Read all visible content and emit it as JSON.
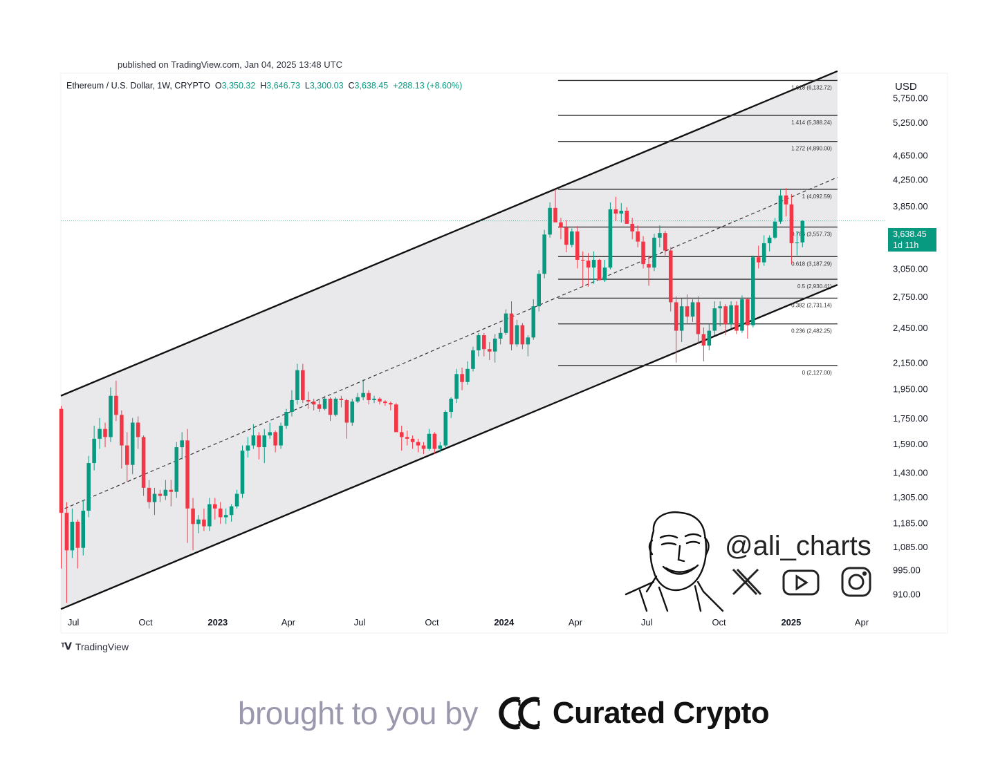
{
  "published_text": "published on TradingView.com, Jan 04, 2025 13:48 UTC",
  "header": {
    "symbol": "Ethereum / U.S. Dollar, 1W, CRYPTO",
    "open_label": "O",
    "open": "3,350.32",
    "high_label": "H",
    "high": "3,646.73",
    "low_label": "L",
    "low": "3,300.03",
    "close_label": "C",
    "close": "3,638.45",
    "change": "+288.13 (+8.60%)"
  },
  "currency": "USD",
  "price_badge": {
    "price": "3,638.45",
    "countdown": "1d 11h"
  },
  "brand": {
    "tradingview": "TradingView",
    "handle": "@ali_charts"
  },
  "footer": {
    "prefix": "brought to you by",
    "brand": "Curated Crypto"
  },
  "colors": {
    "up": "#089981",
    "down": "#f23645",
    "channel_fill": "#e9e9ec",
    "badge": "#089981"
  },
  "chart_data": {
    "type": "candlestick",
    "y_scale": "log",
    "ylim": [
      850,
      6300
    ],
    "y_ticks": [
      5750,
      5250,
      4650,
      4250,
      3850,
      3050,
      2750,
      2450,
      2150,
      1950,
      1750,
      1590,
      1430,
      1305,
      1185,
      1085,
      995,
      910
    ],
    "y_tick_labels": [
      "5,750.00",
      "5,250.00",
      "4,650.00",
      "4,250.00",
      "3,850.00",
      "3,050.00",
      "2,750.00",
      "2,450.00",
      "2,150.00",
      "1,950.00",
      "1,750.00",
      "1,590.00",
      "1,430.00",
      "1,305.00",
      "1,185.00",
      "1,085.00",
      "995.00",
      "910.00"
    ],
    "x_ticks": [
      {
        "date": "2022-07-01",
        "label": "Jul",
        "bold": false
      },
      {
        "date": "2022-10-01",
        "label": "Oct",
        "bold": false
      },
      {
        "date": "2023-01-01",
        "label": "2023",
        "bold": true
      },
      {
        "date": "2023-04-01",
        "label": "Apr",
        "bold": false
      },
      {
        "date": "2023-07-01",
        "label": "Jul",
        "bold": false
      },
      {
        "date": "2023-10-01",
        "label": "Oct",
        "bold": false
      },
      {
        "date": "2024-01-01",
        "label": "2024",
        "bold": true
      },
      {
        "date": "2024-04-01",
        "label": "Apr",
        "bold": false
      },
      {
        "date": "2024-07-01",
        "label": "Jul",
        "bold": false
      },
      {
        "date": "2024-10-01",
        "label": "Oct",
        "bold": false
      },
      {
        "date": "2025-01-01",
        "label": "2025",
        "bold": true
      },
      {
        "date": "2025-04-01",
        "label": "Apr",
        "bold": false
      }
    ],
    "xlim": [
      "2022-06-15",
      "2025-05-01"
    ],
    "channel": {
      "upper": [
        {
          "date": "2022-06-15",
          "price": 1900
        },
        {
          "date": "2025-03-01",
          "price": 6350
        }
      ],
      "lower": [
        {
          "date": "2022-06-15",
          "price": 860
        },
        {
          "date": "2025-03-01",
          "price": 2870
        }
      ],
      "mid_dashed": [
        {
          "date": "2022-06-20",
          "price": 1250
        },
        {
          "date": "2025-03-01",
          "price": 4280
        }
      ]
    },
    "fib": {
      "start_date": "2024-03-10",
      "end_date": "2025-03-01",
      "levels": [
        {
          "ratio": "1.618",
          "price": 6132.72,
          "label": "1.618 (6,132.72)"
        },
        {
          "ratio": "1.414",
          "price": 5388.24,
          "label": "1.414 (5,388.24)"
        },
        {
          "ratio": "1.272",
          "price": 4890.0,
          "label": "1.272 (4,890.00)"
        },
        {
          "ratio": "1",
          "price": 4092.59,
          "label": "1 (4,092.59)"
        },
        {
          "ratio": "0.786",
          "price": 3557.73,
          "label": "0.786 (3,557.73)"
        },
        {
          "ratio": "0.618",
          "price": 3187.29,
          "label": "0.618 (3,187.29)"
        },
        {
          "ratio": "0.5",
          "price": 2930.41,
          "label": "0.5 (2,930.41)"
        },
        {
          "ratio": "0.382",
          "price": 2731.14,
          "label": "0.382 (2,731.14)"
        },
        {
          "ratio": "0.236",
          "price": 2482.25,
          "label": "0.236 (2,482.25)"
        },
        {
          "ratio": "0",
          "price": 2127.0,
          "label": "0 (2,127.00)"
        }
      ]
    },
    "current_price": 3638.45,
    "candles_start": "2022-06-13",
    "candles_step_days": 7,
    "candles_ohlc": [
      [
        1810,
        1830,
        1000,
        1230
      ],
      [
        1230,
        1280,
        880,
        1070
      ],
      [
        1070,
        1250,
        1040,
        1190
      ],
      [
        1190,
        1200,
        1000,
        1080
      ],
      [
        1080,
        1290,
        1050,
        1240
      ],
      [
        1240,
        1520,
        1210,
        1480
      ],
      [
        1480,
        1700,
        1440,
        1620
      ],
      [
        1620,
        1750,
        1560,
        1680
      ],
      [
        1680,
        1720,
        1570,
        1630
      ],
      [
        1630,
        1960,
        1600,
        1900
      ],
      [
        1900,
        2010,
        1730,
        1770
      ],
      [
        1770,
        1800,
        1450,
        1580
      ],
      [
        1580,
        1660,
        1380,
        1470
      ],
      [
        1470,
        1750,
        1420,
        1720
      ],
      [
        1720,
        1760,
        1560,
        1630
      ],
      [
        1630,
        1640,
        1310,
        1350
      ],
      [
        1350,
        1390,
        1250,
        1280
      ],
      [
        1280,
        1350,
        1220,
        1320
      ],
      [
        1320,
        1340,
        1280,
        1310
      ],
      [
        1310,
        1390,
        1290,
        1340
      ],
      [
        1340,
        1390,
        1260,
        1330
      ],
      [
        1330,
        1600,
        1300,
        1570
      ],
      [
        1570,
        1660,
        1500,
        1610
      ],
      [
        1610,
        1680,
        1100,
        1250
      ],
      [
        1250,
        1300,
        1070,
        1180
      ],
      [
        1180,
        1220,
        1140,
        1200
      ],
      [
        1200,
        1250,
        1150,
        1170
      ],
      [
        1170,
        1300,
        1150,
        1270
      ],
      [
        1270,
        1300,
        1200,
        1250
      ],
      [
        1250,
        1280,
        1180,
        1210
      ],
      [
        1210,
        1250,
        1180,
        1220
      ],
      [
        1220,
        1270,
        1190,
        1260
      ],
      [
        1260,
        1340,
        1250,
        1320
      ],
      [
        1320,
        1580,
        1300,
        1550
      ],
      [
        1550,
        1630,
        1510,
        1580
      ],
      [
        1580,
        1710,
        1560,
        1640
      ],
      [
        1640,
        1660,
        1500,
        1570
      ],
      [
        1570,
        1680,
        1480,
        1640
      ],
      [
        1640,
        1720,
        1620,
        1660
      ],
      [
        1660,
        1670,
        1540,
        1580
      ],
      [
        1580,
        1720,
        1560,
        1700
      ],
      [
        1700,
        1810,
        1680,
        1790
      ],
      [
        1790,
        1940,
        1760,
        1870
      ],
      [
        1870,
        2140,
        1840,
        2090
      ],
      [
        2090,
        2140,
        1850,
        1870
      ],
      [
        1870,
        1930,
        1810,
        1860
      ],
      [
        1860,
        1880,
        1800,
        1840
      ],
      [
        1840,
        1870,
        1790,
        1810
      ],
      [
        1810,
        1900,
        1800,
        1880
      ],
      [
        1880,
        1890,
        1730,
        1770
      ],
      [
        1770,
        1890,
        1760,
        1880
      ],
      [
        1880,
        1900,
        1820,
        1870
      ],
      [
        1870,
        1880,
        1620,
        1720
      ],
      [
        1720,
        1880,
        1700,
        1860
      ],
      [
        1860,
        1920,
        1850,
        1890
      ],
      [
        1890,
        2020,
        1870,
        1920
      ],
      [
        1920,
        1940,
        1840,
        1870
      ],
      [
        1870,
        1900,
        1850,
        1880
      ],
      [
        1880,
        1890,
        1840,
        1860
      ],
      [
        1860,
        1870,
        1830,
        1850
      ],
      [
        1850,
        1860,
        1800,
        1840
      ],
      [
        1840,
        1850,
        1720,
        1660
      ],
      [
        1660,
        1700,
        1550,
        1630
      ],
      [
        1630,
        1670,
        1580,
        1620
      ],
      [
        1620,
        1640,
        1560,
        1600
      ],
      [
        1600,
        1620,
        1540,
        1580
      ],
      [
        1580,
        1600,
        1530,
        1560
      ],
      [
        1560,
        1680,
        1550,
        1650
      ],
      [
        1650,
        1660,
        1530,
        1560
      ],
      [
        1560,
        1600,
        1540,
        1580
      ],
      [
        1580,
        1800,
        1570,
        1790
      ],
      [
        1790,
        1890,
        1750,
        1880
      ],
      [
        1880,
        2100,
        1850,
        2060
      ],
      [
        2060,
        2110,
        1940,
        2000
      ],
      [
        2000,
        2160,
        1980,
        2100
      ],
      [
        2100,
        2280,
        2080,
        2250
      ],
      [
        2250,
        2400,
        2200,
        2380
      ],
      [
        2380,
        2400,
        2200,
        2260
      ],
      [
        2260,
        2320,
        2170,
        2240
      ],
      [
        2240,
        2390,
        2150,
        2350
      ],
      [
        2350,
        2450,
        2300,
        2400
      ],
      [
        2400,
        2620,
        2380,
        2580
      ],
      [
        2580,
        2700,
        2250,
        2300
      ],
      [
        2300,
        2520,
        2280,
        2470
      ],
      [
        2470,
        2490,
        2260,
        2300
      ],
      [
        2300,
        2380,
        2200,
        2360
      ],
      [
        2360,
        2720,
        2340,
        2650
      ],
      [
        2650,
        3030,
        2600,
        2990
      ],
      [
        2990,
        3520,
        2940,
        3460
      ],
      [
        3460,
        3900,
        3420,
        3820
      ],
      [
        3820,
        4090,
        3700,
        3620
      ],
      [
        3620,
        3680,
        3400,
        3550
      ],
      [
        3550,
        3650,
        3240,
        3330
      ],
      [
        3330,
        3540,
        3300,
        3500
      ],
      [
        3500,
        3570,
        3050,
        3150
      ],
      [
        3150,
        3250,
        2850,
        3140
      ],
      [
        3140,
        3230,
        2850,
        3060
      ],
      [
        3060,
        3250,
        2880,
        3150
      ],
      [
        3150,
        3160,
        2950,
        2920
      ],
      [
        2920,
        3150,
        2900,
        3060
      ],
      [
        3060,
        3900,
        3040,
        3800
      ],
      [
        3800,
        3980,
        3640,
        3740
      ],
      [
        3740,
        3890,
        3620,
        3780
      ],
      [
        3780,
        3830,
        3600,
        3600
      ],
      [
        3600,
        3680,
        3400,
        3500
      ],
      [
        3500,
        3580,
        3300,
        3370
      ],
      [
        3370,
        3440,
        3050,
        3100
      ],
      [
        3100,
        3200,
        2860,
        3060
      ],
      [
        3060,
        3470,
        3020,
        3420
      ],
      [
        3420,
        3580,
        3300,
        3480
      ],
      [
        3480,
        3510,
        3200,
        3260
      ],
      [
        3260,
        3300,
        2600,
        2690
      ],
      [
        2690,
        2750,
        2150,
        2420
      ],
      [
        2420,
        2730,
        2320,
        2650
      ],
      [
        2650,
        2770,
        2490,
        2550
      ],
      [
        2550,
        2720,
        2500,
        2690
      ],
      [
        2690,
        2750,
        2300,
        2390
      ],
      [
        2390,
        2450,
        2160,
        2290
      ],
      [
        2290,
        2480,
        2250,
        2420
      ],
      [
        2420,
        2700,
        2380,
        2630
      ],
      [
        2630,
        2700,
        2460,
        2650
      ],
      [
        2650,
        2670,
        2380,
        2480
      ],
      [
        2480,
        2700,
        2440,
        2660
      ],
      [
        2660,
        2700,
        2390,
        2420
      ],
      [
        2420,
        2760,
        2400,
        2720
      ],
      [
        2720,
        2730,
        2350,
        2470
      ],
      [
        2470,
        3200,
        2450,
        3180
      ],
      [
        3180,
        3320,
        3050,
        3120
      ],
      [
        3120,
        3450,
        3080,
        3350
      ],
      [
        3350,
        3450,
        3250,
        3420
      ],
      [
        3420,
        3680,
        3400,
        3630
      ],
      [
        3630,
        4100,
        3600,
        4000
      ],
      [
        4000,
        4110,
        3700,
        3870
      ],
      [
        3870,
        4020,
        3100,
        3350
      ],
      [
        3350,
        3500,
        3200,
        3360
      ],
      [
        3360,
        3650,
        3300,
        3640
      ]
    ]
  }
}
